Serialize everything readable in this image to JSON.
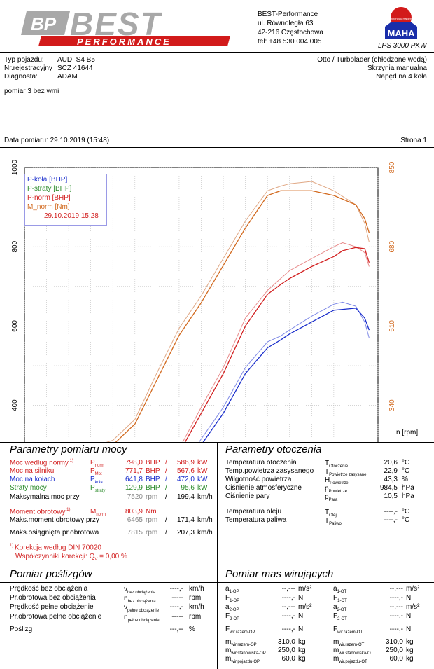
{
  "header": {
    "logo_top": "BP",
    "logo_main": "BEST",
    "logo_sub": "PERFORMANCE",
    "company": "BEST-Performance",
    "street": "ul. Równoległa 63",
    "city": "42-216 Częstochowa",
    "phone": "tel: +48 530 004 005",
    "maha_seal": "Maschinenbau Haldenwang",
    "maha_name": "MAHA",
    "lps": "LPS 3000 PKW"
  },
  "vehicle": {
    "type_label": "Typ pojazdu:",
    "type_value": "AUDI S4 B5",
    "reg_label": "Nr.rejestracyjny",
    "reg_value": "SCZ 41644",
    "diag_label": "Diagnosta:",
    "diag_value": "ADAM",
    "engine": "Otto / Turbolader (chłodzone wodą)",
    "gearbox": "Skrzynia manualna",
    "drive": "Napęd na 4 koła"
  },
  "notes": "pomiar 3 bez wmi",
  "measure": {
    "date_label": "Data pomiaru: 29.10.2019 (15:48)",
    "page_label": "Strona 1"
  },
  "chart_data": {
    "type": "line",
    "x_label": "n [rpm]",
    "x_ticks": [
      "0",
      "1000",
      "2000",
      "3000",
      "4000",
      "5000",
      "6000",
      "7000",
      "8000"
    ],
    "y_left_ticks": [
      "0",
      "200",
      "400",
      "600",
      "800",
      "1000"
    ],
    "y_right_ticks": [
      "0",
      "170",
      "340",
      "510",
      "680",
      "850"
    ],
    "xlim": [
      0,
      8000
    ],
    "ylim_left": [
      0,
      1000
    ],
    "ylim_right": [
      0,
      850
    ],
    "legend": [
      "P-koła [BHP]",
      "P-straty [BHP]",
      "P-norm [BHP]",
      "M_norm [Nm]"
    ],
    "legend_date": "29.10.2019 15:28",
    "colors": {
      "p_kola": "#1a2ecc",
      "p_straty": "#2a8a2a",
      "p_norm": "#d22020",
      "m_norm": "#d2691e",
      "ref_norm": "#e88b8b",
      "ref_m": "#e0a885",
      "ref_kola": "#7f8ae6",
      "ref_straty": "#7cc27c"
    },
    "series": [
      {
        "name": "P-koła [BHP]",
        "x": [
          1500,
          2000,
          2500,
          3000,
          3500,
          4000,
          4500,
          5000,
          5500,
          5800,
          6000,
          6500,
          7000,
          7200,
          7500,
          7700,
          7800
        ],
        "y": [
          25,
          40,
          75,
          140,
          220,
          300,
          380,
          480,
          545,
          565,
          580,
          610,
          640,
          642,
          645,
          620,
          590
        ]
      },
      {
        "name": "P-straty [BHP]",
        "x": [
          1500,
          2000,
          3000,
          4000,
          5000,
          6000,
          7000,
          7800
        ],
        "y": [
          8,
          20,
          40,
          60,
          78,
          96,
          116,
          130
        ]
      },
      {
        "name": "P-norm [BHP]",
        "x": [
          1500,
          2000,
          2500,
          3000,
          3500,
          4000,
          4500,
          5000,
          5500,
          5800,
          6000,
          6500,
          7000,
          7200,
          7500,
          7700,
          7800
        ],
        "y": [
          35,
          60,
          110,
          180,
          280,
          380,
          480,
          600,
          680,
          705,
          720,
          750,
          775,
          790,
          798,
          795,
          760
        ]
      },
      {
        "name": "M_norm [Nm]",
        "x": [
          1500,
          2000,
          2500,
          3000,
          3500,
          4000,
          4500,
          5000,
          5500,
          5800,
          6000,
          6500,
          7000,
          7500,
          7700,
          7800
        ],
        "y": [
          235,
          255,
          300,
          395,
          490,
          560,
          640,
          720,
          790,
          800,
          800,
          800,
          790,
          770,
          740,
          710
        ]
      }
    ],
    "reference_series": [
      {
        "x": [
          1500,
          2000,
          2500,
          3000,
          3500,
          4000,
          4500,
          5000,
          5500,
          5800,
          6000,
          6500,
          7000,
          7200,
          7500,
          7700,
          7800
        ],
        "y": [
          40,
          70,
          120,
          190,
          290,
          395,
          495,
          620,
          690,
          720,
          740,
          770,
          800,
          810,
          800,
          785,
          750
        ]
      },
      {
        "x": [
          1500,
          2000,
          2500,
          3000,
          3500,
          4000,
          4500,
          5000,
          5500,
          5800,
          6000,
          6500,
          7000,
          7500,
          7700,
          7800
        ],
        "y": [
          250,
          265,
          310,
          410,
          505,
          575,
          655,
          735,
          800,
          810,
          815,
          820,
          800,
          770,
          730,
          690
        ]
      },
      {
        "x": [
          1500,
          2000,
          2500,
          3000,
          3500,
          4000,
          4500,
          5000,
          5500,
          5800,
          6000,
          6500,
          7000,
          7200,
          7500,
          7700,
          7800
        ],
        "y": [
          30,
          48,
          85,
          150,
          235,
          315,
          395,
          495,
          560,
          575,
          590,
          625,
          655,
          660,
          650,
          610,
          570
        ]
      },
      {
        "x": [
          1500,
          2000,
          3000,
          4000,
          5000,
          6000,
          7000,
          7800
        ],
        "y": [
          10,
          22,
          42,
          63,
          82,
          100,
          122,
          135
        ]
      }
    ]
  },
  "params": {
    "title": "Parametry pomiaru mocy",
    "rows": [
      {
        "label": "Moc według normy",
        "sup": "1)",
        "sym": "P",
        "sub": "norm",
        "v1": "798,0",
        "u1": "BHP",
        "sep": "/",
        "v2": "586,9",
        "u2": "kW"
      },
      {
        "label": "Moc na silniku",
        "sym": "P",
        "sub": "Mot",
        "v1": "771,7",
        "u1": "BHP",
        "sep": "/",
        "v2": "567,6",
        "u2": "kW"
      },
      {
        "label": "Moc na kołach",
        "sym": "P",
        "sub": "koła",
        "v1": "641,8",
        "u1": "BHP",
        "sep": "/",
        "v2": "472,0",
        "u2": "kW"
      },
      {
        "label": "Straty mocy",
        "sym": "P",
        "sub": "straty",
        "v1": "129,9",
        "u1": "BHP",
        "sep": "/",
        "v2": "95,6",
        "u2": "kW"
      },
      {
        "label": "Maksymalna moc przy",
        "v1": "7520",
        "u1": "rpm",
        "sep": "/",
        "v2": "199,4",
        "u2": "km/h"
      },
      {
        "label": "Moment obrotowy",
        "sup": "1)",
        "sym": "M",
        "sub": "norm",
        "v1": "803,9",
        "u1": "Nm"
      },
      {
        "label": "Maks.moment obrotowy przy",
        "v1": "6465",
        "u1": "rpm",
        "sep": "/",
        "v2": "171,4",
        "u2": "km/h"
      },
      {
        "label": "Maks.osiągnięta pr.obrotowa",
        "v1": "7815",
        "u1": "rpm",
        "sep": "/",
        "v2": "207,3",
        "u2": "km/h"
      }
    ],
    "correction_line1": "Korekcja według DIN 70020",
    "correction_sup": "1)",
    "correction_line2": "Współczynniki korekcji: Q",
    "correction_sub": "V",
    "correction_value": "=   0,00 %"
  },
  "env": {
    "title": "Parametry otoczenia",
    "rows": [
      {
        "label": "Temperatura otoczenia",
        "sym": "T",
        "sub": "Otoczenie",
        "value": "20,6",
        "unit": "°C"
      },
      {
        "label": "Temp.powietrza zasysanego",
        "sym": "T",
        "sub": "Powietrze zasysane",
        "value": "22,9",
        "unit": "°C"
      },
      {
        "label": "Wilgotność powietrza",
        "sym": "H",
        "sub": "Powietrze",
        "value": "43,3",
        "unit": "%"
      },
      {
        "label": "Ciśnienie atmosferyczne",
        "sym": "p",
        "sub": "Powietrze",
        "value": "984,5",
        "unit": "hPa"
      },
      {
        "label": "Ciśnienie pary",
        "sym": "p",
        "sub": "Para",
        "value": "10,5",
        "unit": "hPa"
      },
      {
        "label": "Temperatura oleju",
        "sym": "T",
        "sub": "Olej",
        "value": "----,-",
        "unit": "°C"
      },
      {
        "label": "Temperatura paliwa",
        "sym": "T",
        "sub": "Paliwo",
        "value": "----,-",
        "unit": "°C"
      }
    ]
  },
  "slip": {
    "title": "Pomiar poślizgów",
    "rows": [
      {
        "label": "Prędkość bez obciążenia",
        "sym": "v",
        "sub": "bez obciążenia",
        "value": "----,-",
        "unit": "km/h"
      },
      {
        "label": "Pr.obrotowa bez obciążenia",
        "sym": "n",
        "sub": "bez obciążenia",
        "value": "-----",
        "unit": "rpm"
      },
      {
        "label": "Prędkość pełne obciążenie",
        "sym": "v",
        "sub": "pełne obciążenie",
        "value": "----,-",
        "unit": "km/h"
      },
      {
        "label": "Pr.obrotowa pełne obciążenie",
        "sym": "n",
        "sub": "pełne obciążenie",
        "value": "-----",
        "unit": "rpm"
      },
      {
        "label": "Poślizg",
        "value": "---,--",
        "unit": "%"
      }
    ]
  },
  "mass": {
    "title": "Pomiar mas wirujących",
    "left": [
      {
        "sym": "a",
        "sub": "1-OP",
        "value": "--,---",
        "unit": "m/s²"
      },
      {
        "sym": "F",
        "sub": "1-OP",
        "value": "----,-",
        "unit": "N"
      },
      {
        "sym": "a",
        "sub": "2-OP",
        "value": "--,---",
        "unit": "m/s²"
      },
      {
        "sym": "F",
        "sub": "2-OP",
        "value": "----,-",
        "unit": "N"
      },
      {
        "sym": "F",
        "sub": "wir.razem-OP",
        "value": "----,-",
        "unit": "N"
      },
      {
        "sym": "m",
        "sub": "wir.razem-OP",
        "value": "310,0",
        "unit": "kg"
      },
      {
        "sym": "m",
        "sub": "wir.stanowiska-OP",
        "value": "250,0",
        "unit": "kg"
      },
      {
        "sym": "m",
        "sub": "wir.pojazdu-OP",
        "value": "60,0",
        "unit": "kg"
      }
    ],
    "right": [
      {
        "sym": "a",
        "sub": "1-OT",
        "value": "--,---",
        "unit": "m/s²"
      },
      {
        "sym": "F",
        "sub": "1-OT",
        "value": "----,-",
        "unit": "N"
      },
      {
        "sym": "a",
        "sub": "2-OT",
        "value": "--,---",
        "unit": "m/s²"
      },
      {
        "sym": "F",
        "sub": "2-OT",
        "value": "----,-",
        "unit": "N"
      },
      {
        "sym": "F",
        "sub": "wir.razem-OT",
        "value": "----,-",
        "unit": "N"
      },
      {
        "sym": "m",
        "sub": "wir.razem-OT",
        "value": "310,0",
        "unit": "kg"
      },
      {
        "sym": "m",
        "sub": "wir.stanowiska-OT",
        "value": "250,0",
        "unit": "kg"
      },
      {
        "sym": "m",
        "sub": "wir.pojazdu-OT",
        "value": "60,0",
        "unit": "kg"
      }
    ]
  }
}
